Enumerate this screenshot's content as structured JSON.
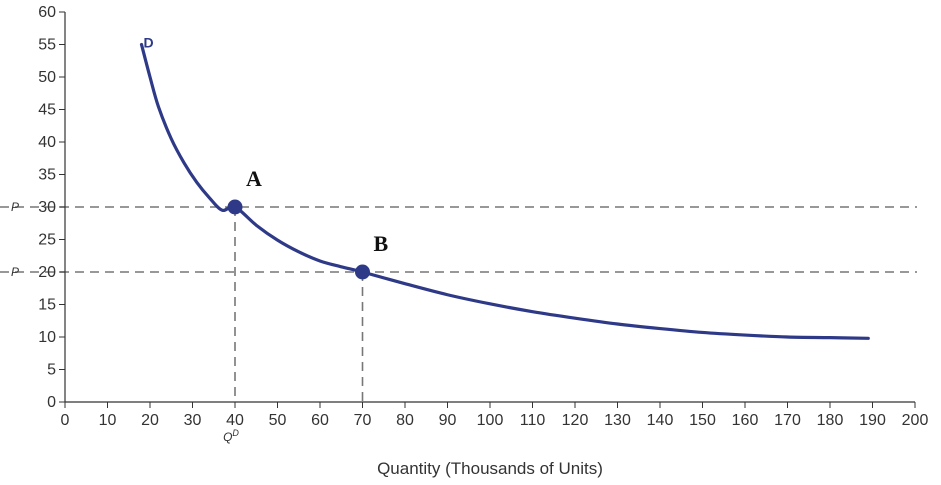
{
  "chart_data": {
    "type": "line",
    "title": "",
    "xlabel": "Quantity (Thousands of Units)",
    "ylabel": "",
    "xlim": [
      0,
      200
    ],
    "ylim": [
      0,
      60
    ],
    "x_ticks": [
      0,
      10,
      20,
      30,
      40,
      50,
      60,
      70,
      80,
      90,
      100,
      110,
      120,
      130,
      140,
      150,
      160,
      170,
      180,
      190,
      200
    ],
    "y_ticks": [
      0,
      5,
      10,
      15,
      20,
      25,
      30,
      35,
      40,
      45,
      50,
      55,
      60
    ],
    "grid": false,
    "series": [
      {
        "name": "D",
        "color": "#2e3a87",
        "x": [
          18,
          20,
          22,
          25,
          28,
          31,
          34,
          37,
          40,
          45,
          50,
          55,
          60,
          65,
          70,
          80,
          90,
          100,
          110,
          120,
          130,
          140,
          150,
          160,
          170,
          180,
          189
        ],
        "y": [
          55,
          50,
          45.4,
          40.5,
          36.8,
          33.8,
          31.4,
          29.5,
          30,
          27.2,
          24.9,
          23.1,
          21.7,
          20.8,
          20,
          18.2,
          16.5,
          15.1,
          13.9,
          12.9,
          12.0,
          11.3,
          10.7,
          10.3,
          10.0,
          9.9,
          9.8
        ]
      }
    ],
    "points": [
      {
        "label": "A",
        "x": 40,
        "y": 30
      },
      {
        "label": "B",
        "x": 70,
        "y": 20
      }
    ],
    "reference_lines": {
      "horizontal": [
        {
          "y": 30,
          "label": "P"
        },
        {
          "y": 20,
          "label": "P"
        }
      ],
      "vertical": [
        {
          "x": 40,
          "label": "Q"
        },
        {
          "x": 70,
          "label": ""
        }
      ],
      "vertical_label_superscript": "D"
    },
    "colors": {
      "curve": "#2e3a87",
      "dashed": "#777777",
      "axis": "#333333"
    }
  }
}
